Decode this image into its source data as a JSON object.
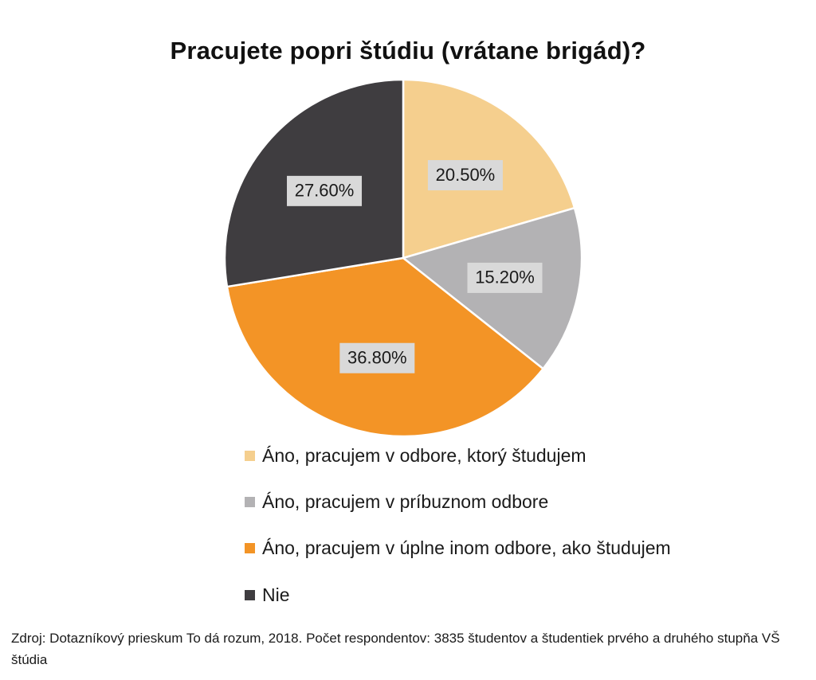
{
  "chart_data": {
    "type": "pie",
    "title": "Pracujete popri štúdiu (vrátane brigád)?",
    "slices": [
      {
        "label": "Áno, pracujem v odbore, ktorý študujem",
        "value": 20.5,
        "display": "20.50%",
        "color": "#f5cf8e"
      },
      {
        "label": "Áno, pracujem v príbuznom odbore",
        "value": 15.2,
        "display": "15.20%",
        "color": "#b3b2b4"
      },
      {
        "label": "Áno, pracujem v úplne inom odbore, ako študujem",
        "value": 36.8,
        "display": "36.80%",
        "color": "#f39426"
      },
      {
        "label": "Nie",
        "value": 27.6,
        "display": "27.60%",
        "color": "#3f3d40"
      }
    ],
    "legend_position": "bottom",
    "data_label_background": "#d9d9d9"
  },
  "source": "Zdroj: Dotazníkový prieskum To dá rozum, 2018. Počet respondentov: 3835 študentov a študentiek prvého a druhého stupňa VŠ štúdia"
}
